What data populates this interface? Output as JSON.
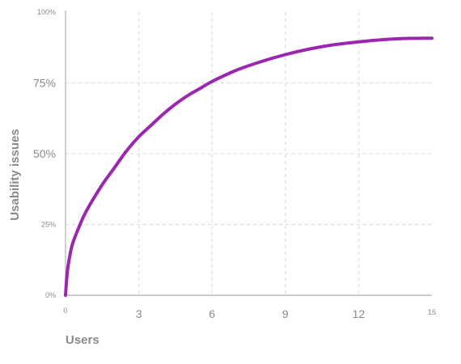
{
  "chart_data": {
    "type": "line",
    "xlabel": "Users",
    "ylabel": "Usability issues",
    "xlim": [
      0,
      15
    ],
    "ylim": [
      0,
      100
    ],
    "x_ticks": [
      {
        "value": 0,
        "label": "0"
      },
      {
        "value": 3,
        "label": "3"
      },
      {
        "value": 6,
        "label": "6"
      },
      {
        "value": 9,
        "label": "9"
      },
      {
        "value": 12,
        "label": "12"
      },
      {
        "value": 15,
        "label": "15"
      }
    ],
    "y_ticks": [
      {
        "value": 0,
        "label": "0%"
      },
      {
        "value": 25,
        "label": "25%"
      },
      {
        "value": 50,
        "label": "50%"
      },
      {
        "value": 75,
        "label": "75%"
      },
      {
        "value": 100,
        "label": "100%"
      }
    ],
    "grid": true,
    "series": [
      {
        "color": "#9b27af",
        "x": [
          0,
          0.05,
          0.1,
          0.2,
          0.3,
          0.5,
          0.75,
          1,
          1.5,
          2,
          2.5,
          3,
          3.5,
          4,
          4.5,
          5,
          5.5,
          6,
          7,
          8,
          9,
          10,
          11,
          12,
          13,
          14,
          15
        ],
        "y": [
          0,
          6,
          10,
          15,
          18.5,
          23,
          28,
          32,
          39,
          45,
          51,
          56,
          60,
          64,
          67.5,
          70.5,
          73,
          75.5,
          79.5,
          82.5,
          85,
          87,
          88.5,
          89.5,
          90.3,
          90.7,
          90.8
        ]
      }
    ],
    "colors": {
      "line": "#9b27af",
      "grid": "#d9d9d9",
      "axis": "#bdbdbd",
      "text": "#8a8a8a"
    }
  }
}
